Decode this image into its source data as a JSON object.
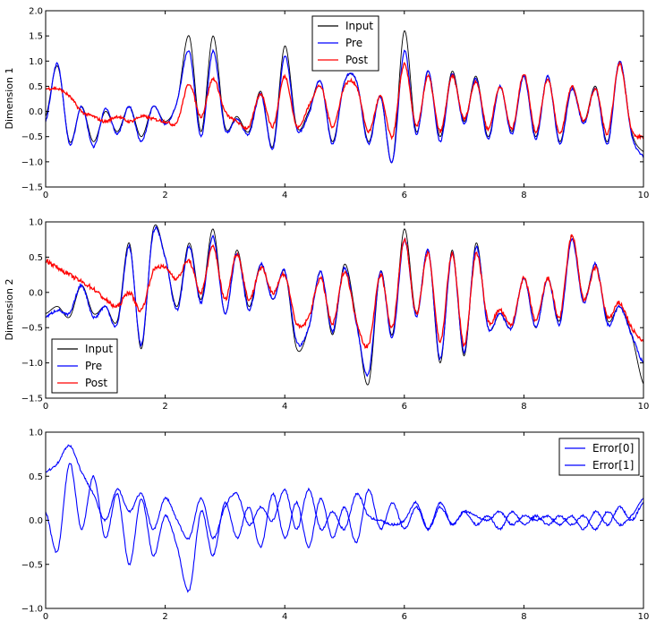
{
  "chart_data": [
    {
      "type": "line",
      "ylabel": "Dimension 1",
      "xlim": [
        0,
        10
      ],
      "ylim": [
        -1.5,
        2.0
      ],
      "xticks": [
        0,
        2,
        4,
        6,
        8,
        10
      ],
      "xtick_labels": [
        "0",
        "2",
        "4",
        "6",
        "8",
        "10"
      ],
      "yticks": [
        -1.5,
        -1.0,
        -0.5,
        0.0,
        0.5,
        1.0,
        1.5,
        2.0
      ],
      "ytick_labels": [
        "−1.5",
        "−1.0",
        "−0.5",
        "0.0",
        "0.5",
        "1.0",
        "1.5",
        "2.0"
      ],
      "legend_position": "top-center",
      "series": [
        {
          "name": "Input",
          "color": "#000000"
        },
        {
          "name": "Pre",
          "color": "#0000ff"
        },
        {
          "name": "Post",
          "color": "#ff0000"
        }
      ],
      "x": [
        0.0,
        0.2,
        0.4,
        0.6,
        0.8,
        1.0,
        1.2,
        1.4,
        1.6,
        1.8,
        2.0,
        2.2,
        2.4,
        2.6,
        2.8,
        3.0,
        3.2,
        3.4,
        3.6,
        3.8,
        4.0,
        4.2,
        4.4,
        4.6,
        4.8,
        5.0,
        5.2,
        5.4,
        5.6,
        5.8,
        6.0,
        6.2,
        6.4,
        6.6,
        6.8,
        7.0,
        7.2,
        7.4,
        7.6,
        7.8,
        8.0,
        8.2,
        8.4,
        8.6,
        8.8,
        9.0,
        9.2,
        9.4,
        9.6,
        9.8,
        10.0
      ],
      "input": [
        -0.1,
        0.9,
        -0.6,
        0.1,
        -0.6,
        0.0,
        -0.4,
        0.1,
        -0.5,
        0.1,
        -0.2,
        0.2,
        1.5,
        -0.4,
        1.5,
        -0.3,
        -0.1,
        -0.4,
        0.4,
        -0.7,
        1.3,
        -0.3,
        0.0,
        0.6,
        -0.6,
        0.6,
        0.6,
        -0.6,
        0.3,
        -1.0,
        1.6,
        -0.4,
        0.8,
        -0.5,
        0.8,
        -0.2,
        0.7,
        -0.5,
        0.5,
        -0.4,
        0.7,
        -0.5,
        0.7,
        -0.6,
        0.5,
        -0.2,
        0.5,
        -0.6,
        1.0,
        -0.4,
        -0.8
      ],
      "pre": [
        -0.2,
        0.95,
        -0.65,
        0.1,
        -0.7,
        0.05,
        -0.45,
        0.1,
        -0.6,
        0.1,
        -0.25,
        0.2,
        1.2,
        -0.5,
        1.2,
        -0.35,
        -0.15,
        -0.45,
        0.35,
        -0.75,
        1.1,
        -0.35,
        -0.05,
        0.6,
        -0.65,
        0.6,
        0.6,
        -0.65,
        0.3,
        -1.0,
        1.2,
        -0.45,
        0.8,
        -0.6,
        0.75,
        -0.25,
        0.65,
        -0.55,
        0.5,
        -0.45,
        0.7,
        -0.55,
        0.7,
        -0.65,
        0.45,
        -0.25,
        0.45,
        -0.65,
        1.0,
        -0.45,
        -0.9
      ],
      "post": [
        0.45,
        0.45,
        0.3,
        0.0,
        -0.1,
        -0.2,
        -0.1,
        -0.2,
        -0.1,
        -0.15,
        -0.2,
        -0.2,
        0.55,
        -0.1,
        0.65,
        0.0,
        -0.2,
        -0.3,
        0.35,
        -0.3,
        0.7,
        -0.3,
        0.1,
        0.5,
        -0.3,
        0.5,
        0.5,
        -0.4,
        0.3,
        -0.5,
        0.95,
        -0.3,
        0.7,
        -0.4,
        0.7,
        -0.15,
        0.6,
        -0.35,
        0.5,
        -0.35,
        0.75,
        -0.4,
        0.65,
        -0.45,
        0.5,
        -0.2,
        0.45,
        -0.45,
        0.95,
        -0.35,
        -0.5
      ]
    },
    {
      "type": "line",
      "ylabel": "Dimension 2",
      "xlim": [
        0,
        10
      ],
      "ylim": [
        -1.5,
        1.0
      ],
      "xticks": [
        0,
        2,
        4,
        6,
        8,
        10
      ],
      "xtick_labels": [
        "0",
        "2",
        "4",
        "6",
        "8",
        "10"
      ],
      "yticks": [
        -1.5,
        -1.0,
        -0.5,
        0.0,
        0.5,
        1.0
      ],
      "ytick_labels": [
        "−1.5",
        "−1.0",
        "−0.5",
        "0.0",
        "0.5",
        "1.0"
      ],
      "legend_position": "lower-left",
      "series": [
        {
          "name": "Input",
          "color": "#000000"
        },
        {
          "name": "Pre",
          "color": "#0000ff"
        },
        {
          "name": "Post",
          "color": "#ff0000"
        }
      ],
      "x": [
        0.0,
        0.2,
        0.4,
        0.6,
        0.8,
        1.0,
        1.2,
        1.4,
        1.6,
        1.8,
        2.0,
        2.2,
        2.4,
        2.6,
        2.8,
        3.0,
        3.2,
        3.4,
        3.6,
        3.8,
        4.0,
        4.2,
        4.4,
        4.6,
        4.8,
        5.0,
        5.2,
        5.4,
        5.6,
        5.8,
        6.0,
        6.2,
        6.4,
        6.6,
        6.8,
        7.0,
        7.2,
        7.4,
        7.6,
        7.8,
        8.0,
        8.2,
        8.4,
        8.6,
        8.8,
        9.0,
        9.2,
        9.4,
        9.6,
        9.8,
        10.0
      ],
      "input": [
        -0.3,
        -0.2,
        -0.35,
        0.1,
        -0.3,
        -0.2,
        -0.4,
        0.7,
        -0.8,
        0.9,
        0.5,
        -0.2,
        0.7,
        -0.1,
        0.9,
        -0.3,
        0.6,
        -0.2,
        0.4,
        -0.1,
        0.3,
        -0.8,
        -0.5,
        0.3,
        -0.6,
        0.4,
        -0.4,
        -1.3,
        0.3,
        -0.6,
        0.9,
        -0.3,
        0.6,
        -1.0,
        0.6,
        -0.9,
        0.7,
        -0.5,
        -0.3,
        -0.5,
        0.2,
        -0.5,
        0.2,
        -0.4,
        0.8,
        -0.1,
        0.4,
        -0.4,
        -0.2,
        -0.6,
        -1.3
      ],
      "pre": [
        -0.35,
        -0.25,
        -0.3,
        0.1,
        -0.35,
        -0.2,
        -0.45,
        0.65,
        -0.75,
        0.85,
        0.5,
        -0.25,
        0.65,
        -0.15,
        0.8,
        -0.3,
        0.55,
        -0.25,
        0.4,
        -0.1,
        0.3,
        -0.7,
        -0.5,
        0.3,
        -0.55,
        0.35,
        -0.45,
        -1.15,
        0.3,
        -0.65,
        0.75,
        -0.35,
        0.6,
        -0.95,
        0.55,
        -0.85,
        0.65,
        -0.5,
        -0.3,
        -0.5,
        0.2,
        -0.5,
        0.2,
        -0.45,
        0.75,
        -0.15,
        0.4,
        -0.45,
        -0.2,
        -0.6,
        -1.0
      ],
      "post": [
        0.45,
        0.35,
        0.25,
        0.15,
        0.05,
        -0.1,
        -0.2,
        0.0,
        -0.25,
        0.3,
        0.35,
        0.2,
        0.45,
        0.0,
        0.65,
        -0.1,
        0.55,
        -0.1,
        0.35,
        0.0,
        0.25,
        -0.45,
        -0.35,
        0.2,
        -0.45,
        0.3,
        -0.4,
        -0.75,
        0.25,
        -0.5,
        0.75,
        -0.3,
        0.55,
        -0.7,
        0.55,
        -0.75,
        0.55,
        -0.4,
        -0.25,
        -0.45,
        0.2,
        -0.4,
        0.2,
        -0.35,
        0.8,
        -0.1,
        0.35,
        -0.35,
        -0.15,
        -0.5,
        -0.7
      ]
    },
    {
      "type": "line",
      "ylabel": "",
      "xlim": [
        0,
        10
      ],
      "ylim": [
        -1.0,
        1.0
      ],
      "xticks": [
        0,
        2,
        4,
        6,
        8,
        10
      ],
      "xtick_labels": [
        "0",
        "2",
        "4",
        "6",
        "8",
        "10"
      ],
      "yticks": [
        -1.0,
        -0.5,
        0.0,
        0.5,
        1.0
      ],
      "ytick_labels": [
        "−1.0",
        "−0.5",
        "0.0",
        "0.5",
        "1.0"
      ],
      "legend_position": "top-right",
      "series": [
        {
          "name": "Error[0]",
          "color": "#0000ff"
        },
        {
          "name": "Error[1]",
          "color": "#0000ff"
        }
      ],
      "x": [
        0.0,
        0.2,
        0.4,
        0.6,
        0.8,
        1.0,
        1.2,
        1.4,
        1.6,
        1.8,
        2.0,
        2.2,
        2.4,
        2.6,
        2.8,
        3.0,
        3.2,
        3.4,
        3.6,
        3.8,
        4.0,
        4.2,
        4.4,
        4.6,
        4.8,
        5.0,
        5.2,
        5.4,
        5.6,
        5.8,
        6.0,
        6.2,
        6.4,
        6.6,
        6.8,
        7.0,
        7.2,
        7.4,
        7.6,
        7.8,
        8.0,
        8.2,
        8.4,
        8.6,
        8.8,
        9.0,
        9.2,
        9.4,
        9.6,
        9.8,
        10.0
      ],
      "error0": [
        0.1,
        -0.35,
        0.65,
        -0.1,
        0.5,
        -0.2,
        0.3,
        -0.5,
        0.25,
        -0.4,
        0.05,
        -0.3,
        -0.8,
        0.1,
        -0.4,
        0.2,
        -0.2,
        0.15,
        -0.3,
        0.3,
        -0.2,
        0.2,
        -0.3,
        0.25,
        -0.2,
        0.15,
        -0.25,
        0.35,
        -0.1,
        0.2,
        -0.1,
        0.15,
        -0.1,
        0.2,
        -0.05,
        0.1,
        -0.05,
        0.05,
        -0.1,
        0.1,
        -0.05,
        0.05,
        -0.05,
        0.05,
        -0.05,
        0.05,
        -0.1,
        0.1,
        -0.05,
        0.05,
        0.25
      ],
      "error1": [
        0.55,
        0.65,
        0.85,
        0.55,
        0.3,
        0.0,
        0.35,
        0.1,
        0.3,
        -0.1,
        0.25,
        0.0,
        -0.2,
        0.25,
        -0.2,
        0.15,
        0.3,
        -0.05,
        0.15,
        0.0,
        0.35,
        -0.1,
        0.35,
        -0.1,
        0.1,
        -0.1,
        0.3,
        0.05,
        0.0,
        -0.05,
        0.0,
        0.2,
        -0.1,
        0.15,
        -0.05,
        0.1,
        0.05,
        0.0,
        0.1,
        -0.05,
        0.05,
        0.0,
        0.05,
        -0.05,
        0.05,
        -0.1,
        0.1,
        -0.05,
        0.15,
        0.0,
        0.2
      ]
    }
  ]
}
